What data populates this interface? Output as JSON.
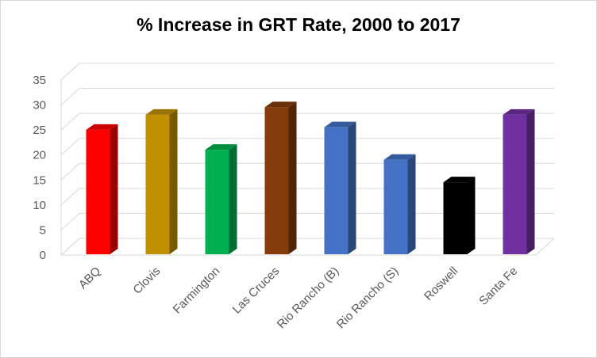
{
  "chart_data": {
    "type": "bar",
    "title": "% Increase in GRT Rate, 2000 to 2017",
    "xlabel": "",
    "ylabel": "",
    "ylim": [
      0,
      35
    ],
    "yticks": [
      0,
      5,
      10,
      15,
      20,
      25,
      30,
      35
    ],
    "grid": true,
    "categories": [
      "ABQ",
      "Clovis",
      "Farmington",
      "Las Cruces",
      "Rio Rancho (B)",
      "Rio Rancho (S)",
      "Roswell",
      "Santa Fe"
    ],
    "values": [
      26,
      29,
      22,
      30.5,
      26.5,
      20,
      15.5,
      29
    ],
    "colors": [
      "#ff0000",
      "#c09000",
      "#00b050",
      "#843c0c",
      "#4472c4",
      "#4472c4",
      "#000000",
      "#7030a0"
    ]
  }
}
